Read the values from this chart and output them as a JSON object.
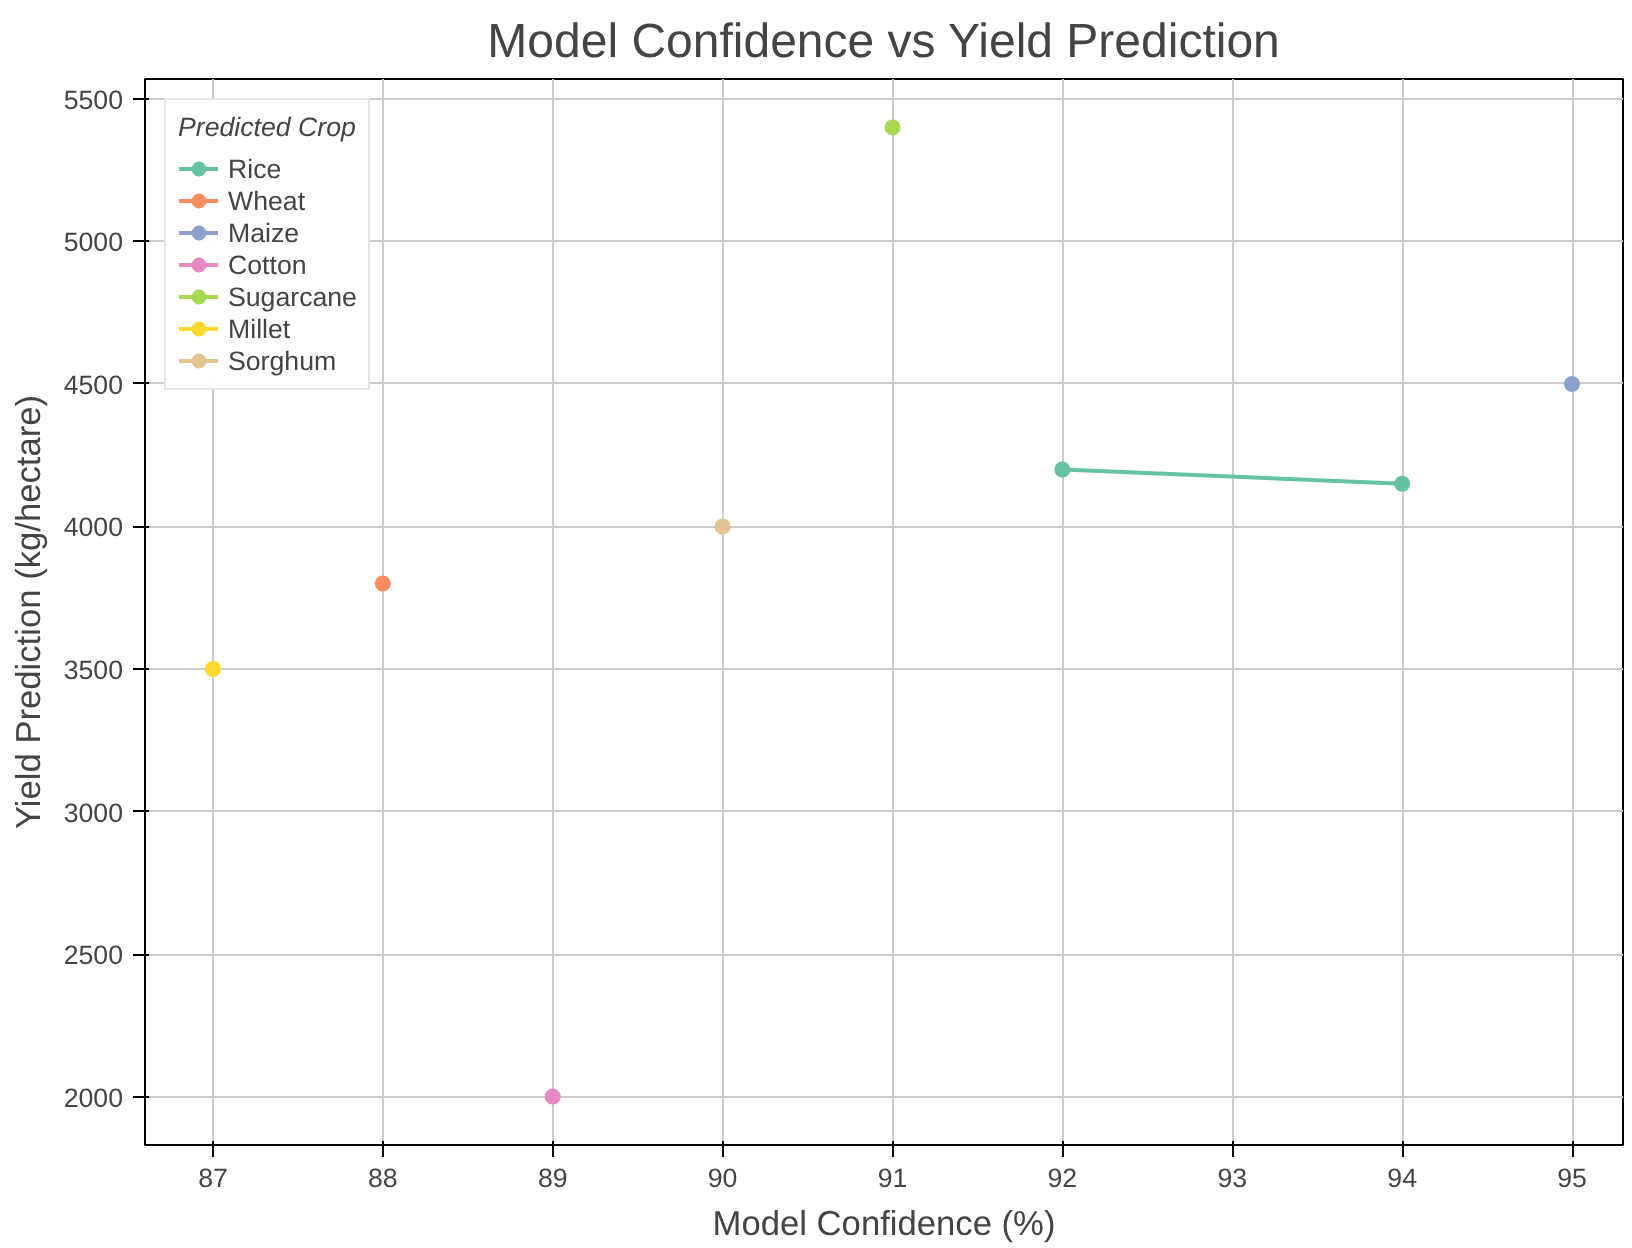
{
  "chart_data": {
    "type": "line",
    "title": "Model Confidence vs Yield Prediction",
    "xlabel": "Model Confidence (%)",
    "ylabel": "Yield Prediction (kg/hectare)",
    "legend_title": "Predicted Crop",
    "series": [
      {
        "name": "Rice",
        "color": "#66c2a5",
        "x": [
          92,
          94
        ],
        "values": [
          4200,
          4150
        ]
      },
      {
        "name": "Wheat",
        "color": "#fc8d62",
        "x": [
          88
        ],
        "values": [
          3800
        ]
      },
      {
        "name": "Maize",
        "color": "#8da0cb",
        "x": [
          95
        ],
        "values": [
          4500
        ]
      },
      {
        "name": "Cotton",
        "color": "#e78ac3",
        "x": [
          89
        ],
        "values": [
          2000
        ]
      },
      {
        "name": "Sugarcane",
        "color": "#a6d854",
        "x": [
          91
        ],
        "values": [
          5400
        ]
      },
      {
        "name": "Millet",
        "color": "#ffd92f",
        "x": [
          87
        ],
        "values": [
          3500
        ]
      },
      {
        "name": "Sorghum",
        "color": "#e5c494",
        "x": [
          90
        ],
        "values": [
          4000
        ]
      }
    ],
    "xlim": [
      86.6,
      95.3
    ],
    "ylim": [
      1830,
      5570
    ],
    "xticks": [
      87,
      88,
      89,
      90,
      91,
      92,
      93,
      94,
      95
    ],
    "yticks": [
      2000,
      2500,
      3000,
      3500,
      4000,
      4500,
      5000,
      5500
    ],
    "grid": true,
    "legend": "top left",
    "marker": "circle",
    "line_style": "solid"
  }
}
